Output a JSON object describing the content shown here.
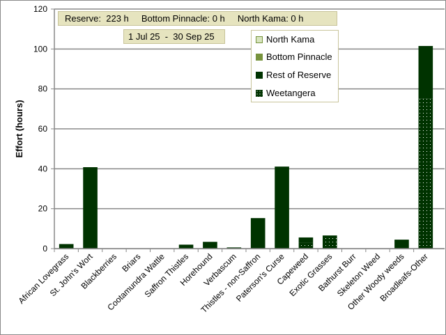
{
  "header": {
    "summary": "Reserve:  223 h     Bottom Pinnacle: 0 h     North Kama: 0 h",
    "date_range": "1 Jul 25  -  30 Sep 25"
  },
  "chart_data": {
    "type": "bar",
    "stacked": true,
    "title": "",
    "xlabel": "",
    "ylabel": "Effort  (hours)",
    "ylim": [
      0,
      120
    ],
    "yticks": [
      0,
      20,
      40,
      60,
      80,
      100,
      120
    ],
    "grid": true,
    "legend_placement": "top-right",
    "categories": [
      "African Lovegrass",
      "St. John's Wort",
      "Blackberries",
      "Briars",
      "Cootamundra Wattle",
      "Saffron Thistles",
      "Horehound",
      "Verbascum",
      "Thistles - non-Saffron",
      "Paterson's Curse",
      "Capeweed",
      "Exotic Grasses",
      "Bathurst Burr",
      "Skeleton Weed",
      "Other Woody weeds",
      "Broadleafs-Other"
    ],
    "series": [
      {
        "name": "Weetangera",
        "color": "#003300",
        "pattern": "dots",
        "values": [
          0,
          0,
          0,
          0,
          0,
          0,
          0,
          0,
          0,
          0,
          3.0,
          6.6,
          0,
          0,
          0,
          75.3
        ]
      },
      {
        "name": "Rest of Reserve",
        "color": "#003300",
        "values": [
          2.3,
          40.8,
          0,
          0,
          0,
          2.0,
          3.4,
          0.6,
          15.3,
          41.1,
          2.6,
          0,
          0,
          0,
          4.5,
          26.2
        ]
      },
      {
        "name": "Bottom Pinnacle",
        "color": "#77933c",
        "values": [
          0,
          0,
          0,
          0,
          0,
          0,
          0,
          0,
          0,
          0,
          0,
          0,
          0,
          0,
          0,
          0
        ]
      },
      {
        "name": "North Kama",
        "color": "#d7e4bd",
        "values": [
          0,
          0,
          0,
          0,
          0,
          0,
          0,
          0,
          0,
          0,
          0,
          0,
          0,
          0,
          0,
          0
        ]
      }
    ],
    "legend_order": [
      "North Kama",
      "Bottom Pinnacle",
      "Rest of Reserve",
      "Weetangera"
    ]
  }
}
